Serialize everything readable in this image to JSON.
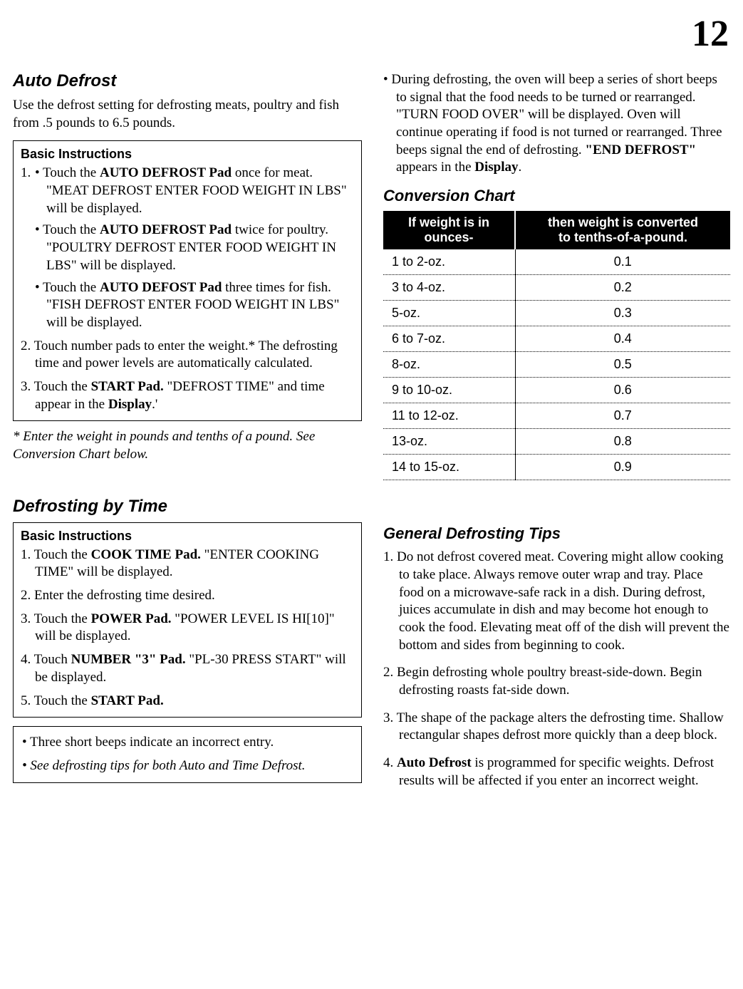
{
  "page_number": "12",
  "auto_defrost": {
    "title": "Auto Defrost",
    "intro": "Use the defrost setting for defrosting meats, poultry and fish from .5 pounds to 6.5 pounds.",
    "box_title": "Basic Instructions",
    "step1_lead": "1.",
    "step1a_pre": "• Touch the ",
    "step1a_bold": "AUTO DEFROST Pad",
    "step1a_post": " once for meat. \"MEAT DEFROST ENTER FOOD WEIGHT IN LBS\" will be displayed.",
    "step1b_pre": "• Touch the ",
    "step1b_bold": "AUTO DEFROST Pad",
    "step1b_post": " twice for poultry. \"POULTRY DEFROST ENTER FOOD WEIGHT IN LBS\" will be displayed.",
    "step1c_pre": "• Touch the ",
    "step1c_bold": "AUTO DEFOST Pad",
    "step1c_post": " three times for fish. \"FISH DEFROST ENTER FOOD WEIGHT IN LBS\" will be displayed.",
    "step2": "2. Touch number pads to enter the weight.* The defrosting time and power levels are automatically calculated.",
    "step3_pre": "3. Touch the ",
    "step3_bold": "START Pad.",
    "step3_mid": " \"DEFROST TIME\" and time appear in the ",
    "step3_bold2": "Display",
    "step3_post": ".'",
    "footnote": "* Enter the weight in pounds and tenths of a pound. See Conversion Chart below."
  },
  "right_bullet": {
    "pre": "• During defrosting, the oven will beep a series of short beeps to signal that the food needs to be turned or rearranged. \"TURN FOOD OVER\" will be displayed. Oven will continue operating if food is not turned or rearranged. Three beeps signal the end of defrosting. ",
    "bold1": "\"END DEFROST\"",
    "mid": " appears in the ",
    "bold2": "Display",
    "post": "."
  },
  "conversion": {
    "title": "Conversion Chart",
    "header1_line1": "If weight is in",
    "header1_line2": "ounces-",
    "header2_line1": "then weight is converted",
    "header2_line2": "to tenths-of-a-pound.",
    "rows": [
      {
        "oz": "1 to 2-oz.",
        "val": "0.1"
      },
      {
        "oz": "3 to 4-oz.",
        "val": "0.2"
      },
      {
        "oz": "5-oz.",
        "val": "0.3"
      },
      {
        "oz": "6 to 7-oz.",
        "val": "0.4"
      },
      {
        "oz": "8-oz.",
        "val": "0.5"
      },
      {
        "oz": "9 to 10-oz.",
        "val": "0.6"
      },
      {
        "oz": "11 to 12-oz.",
        "val": "0.7"
      },
      {
        "oz": "13-oz.",
        "val": "0.8"
      },
      {
        "oz": "14 to 15-oz.",
        "val": "0.9"
      }
    ]
  },
  "defrost_time": {
    "title": "Defrosting by Time",
    "box_title": "Basic Instructions",
    "step1_pre": "1. Touch the ",
    "step1_bold": "COOK TIME Pad.",
    "step1_post": " \"ENTER COOKING TIME\" will be displayed.",
    "step2": "2. Enter the defrosting time desired.",
    "step3_pre": "3. Touch the ",
    "step3_bold": "POWER Pad.",
    "step3_post": " \"POWER LEVEL IS HI[10]\" will be displayed.",
    "step4_pre": "4. Touch ",
    "step4_bold": "NUMBER \"3\" Pad.",
    "step4_post": " \"PL-30 PRESS START\" will be displayed.",
    "step5_pre": "5. Touch the ",
    "step5_bold": "START Pad.",
    "note1": "• Three short beeps indicate an incorrect entry.",
    "note2": "• See defrosting tips for both Auto and Time Defrost."
  },
  "tips": {
    "title": "General Defrosting Tips",
    "tip1": "1. Do not defrost covered meat. Covering might allow cooking to take place. Always remove outer wrap and tray. Place food on a microwave-safe rack in a dish. During defrost, juices accumulate in dish and may become hot enough to cook the food. Elevating meat off of the dish will prevent the bottom and sides from beginning to cook.",
    "tip2": "2. Begin defrosting whole poultry breast-side-down. Begin defrosting roasts fat-side down.",
    "tip3": "3. The shape of the package alters the defrosting time. Shallow rectangular shapes defrost more quickly than a deep block.",
    "tip4_pre": "4. ",
    "tip4_bold": "Auto Defrost",
    "tip4_post": " is programmed for specific weights. Defrost results will be affected if you enter an incorrect weight."
  }
}
